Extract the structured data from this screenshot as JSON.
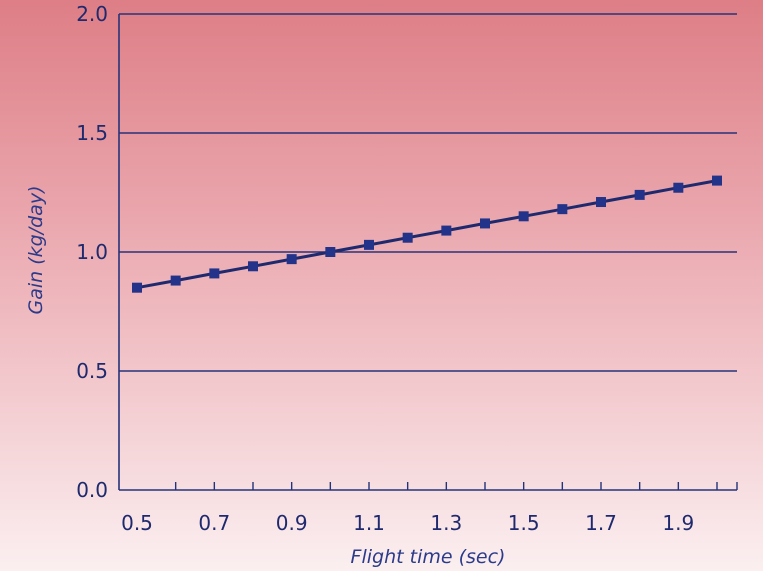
{
  "chart_data": {
    "type": "line",
    "title": "",
    "xlabel": "Flight time (sec)",
    "ylabel": "Gain (kg/day)",
    "xlim": [
      0.5,
      2.0
    ],
    "ylim": [
      0.0,
      2.0
    ],
    "x_tick_labels": [
      "0.5",
      "0.7",
      "0.9",
      "1.1",
      "1.3",
      "1.5",
      "1.7",
      "1.9"
    ],
    "y_tick_labels": [
      "0.0",
      "0.5",
      "1.0",
      "1.5",
      "2.0"
    ],
    "grid": "horizontal",
    "series": [
      {
        "x": [
          0.5,
          0.6,
          0.7,
          0.8,
          0.9,
          1.0,
          1.1,
          1.2,
          1.3,
          1.4,
          1.5,
          1.6,
          1.7,
          1.8,
          1.9,
          2.0
        ],
        "y": [
          0.85,
          0.88,
          0.91,
          0.94,
          0.97,
          1.0,
          1.03,
          1.06,
          1.09,
          1.12,
          1.15,
          1.18,
          1.21,
          1.24,
          1.27,
          1.3
        ]
      }
    ],
    "colors": {
      "line": "#1f2a6e",
      "marker": "#24338a",
      "grid": "#26337a",
      "text": "#1f2a6e",
      "axis_title": "#2b3a8a"
    }
  }
}
